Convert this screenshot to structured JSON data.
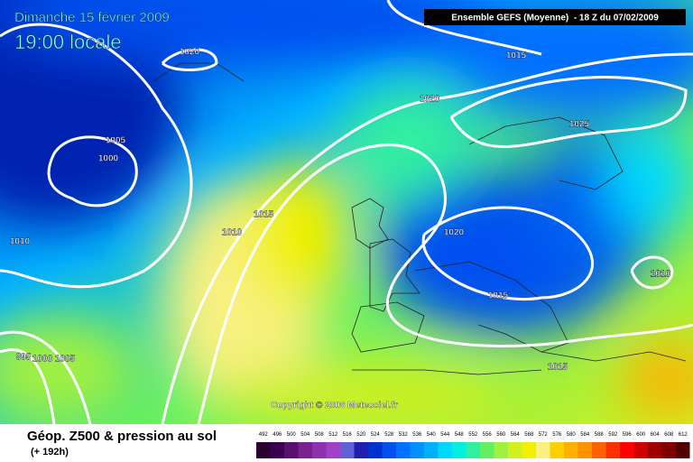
{
  "header": {
    "date": "Dimanche 15 février 2009",
    "time": "19:00 locale",
    "run": "Ensemble GEFS (Moyenne)  - 18 Z du 07/02/2009"
  },
  "isobar_labels": [
    1020,
    1015,
    1005,
    1000,
    1010,
    1020,
    1025,
    1015,
    1010,
    1010,
    1020,
    1015,
    1010,
    995,
    1000,
    1005,
    1015
  ],
  "copyright": "Copyright © 2008 Meteociel.fr",
  "footer": {
    "title": "Géop. Z500 & pression au sol",
    "lead": "(+ 192h)"
  },
  "legend": {
    "values": [
      492,
      496,
      500,
      504,
      508,
      512,
      516,
      520,
      524,
      528,
      532,
      536,
      540,
      544,
      548,
      552,
      556,
      560,
      564,
      568,
      572,
      576,
      580,
      584,
      588,
      592,
      596,
      600,
      604,
      608,
      612
    ],
    "colors": [
      "#2a0030",
      "#3c0050",
      "#5a1070",
      "#7a2090",
      "#9030b0",
      "#a040c8",
      "#6060d8",
      "#2020b0",
      "#0030d0",
      "#0050f0",
      "#0070ff",
      "#0090ff",
      "#00b0ff",
      "#00d8ff",
      "#00f0e0",
      "#30f0a0",
      "#60f060",
      "#a0f040",
      "#d0f020",
      "#f0f000",
      "#f8f080",
      "#ffd000",
      "#ffb000",
      "#ff9000",
      "#ff6000",
      "#ff3000",
      "#ff0000",
      "#d00000",
      "#a00000",
      "#800000",
      "#500000"
    ]
  }
}
